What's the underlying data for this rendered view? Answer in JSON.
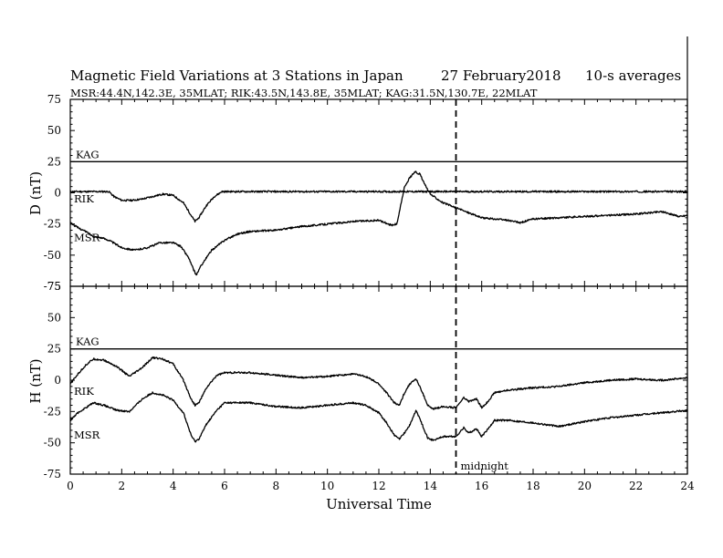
{
  "colors": {
    "foreground": "#000000",
    "background": "#ffffff"
  },
  "header": {
    "title": "Magnetic Field Variations at 3 Stations in Japan",
    "date": "27 February2018",
    "averaging": "10-s averages",
    "stations": "MSR:44.4N,142.3E, 35MLAT;  RIK:43.5N,143.8E, 35MLAT;  KAG:31.5N,130.7E, 22MLAT"
  },
  "chart_data": [
    {
      "type": "line",
      "panel": "top",
      "ylabel": "D (nT)",
      "ylim": [
        -75,
        75
      ],
      "yticks": [
        75,
        50,
        25,
        0,
        -25,
        -50,
        -75
      ],
      "xlim": [
        0,
        24
      ],
      "series": [
        {
          "name": "KAG",
          "x": [
            0,
            4,
            8,
            12,
            16,
            20,
            24
          ],
          "values": [
            25,
            25,
            25,
            25,
            25,
            25,
            25
          ]
        },
        {
          "name": "RIK",
          "x": [
            0,
            0.3,
            1.5,
            1.7,
            2.0,
            2.4,
            2.8,
            3.2,
            3.6,
            4.0,
            4.4,
            4.7,
            4.85,
            5.0,
            5.3,
            5.6,
            5.9,
            6.0,
            10,
            12.4,
            12.8,
            13.0,
            13.2,
            13.4,
            13.6,
            13.8,
            14.0,
            14.3,
            14.6,
            15.0,
            16,
            20,
            24
          ],
          "values": [
            1,
            1,
            1,
            -3,
            -6,
            -6,
            -5,
            -3,
            -1,
            -2,
            -8,
            -18,
            -23,
            -20,
            -10,
            -3,
            1,
            1,
            1,
            1,
            1,
            1,
            1,
            1,
            1,
            1,
            1,
            1,
            1,
            1,
            1,
            1,
            1
          ]
        },
        {
          "name": "MSR",
          "x": [
            0,
            0.3,
            0.6,
            0.9,
            1.2,
            1.5,
            2.0,
            2.5,
            3.0,
            3.5,
            4.0,
            4.3,
            4.6,
            4.8,
            4.9,
            5.1,
            5.5,
            6.0,
            6.5,
            7.0,
            8.0,
            9.0,
            10.0,
            11.0,
            12.0,
            12.5,
            12.7,
            12.85,
            13.0,
            13.2,
            13.4,
            13.6,
            13.8,
            14.0,
            14.5,
            15.0,
            15.5,
            16.0,
            17.0,
            17.5,
            18.0,
            19.0,
            20.0,
            21.0,
            22.0,
            23.0,
            23.7,
            24.0
          ],
          "values": [
            -24,
            -28,
            -31,
            -35,
            -36,
            -38,
            -44,
            -46,
            -44,
            -40,
            -40,
            -43,
            -52,
            -62,
            -66,
            -58,
            -46,
            -38,
            -33,
            -31,
            -30,
            -27,
            -25,
            -23,
            -22,
            -26,
            -25,
            -10,
            5,
            12,
            17,
            15,
            6,
            -1,
            -8,
            -12,
            -16,
            -20,
            -22,
            -24,
            -21,
            -20,
            -19,
            -18,
            -17,
            -15,
            -19,
            -18
          ]
        }
      ],
      "annotations": [
        {
          "text": "midnight",
          "x": 15
        }
      ]
    },
    {
      "type": "line",
      "panel": "bottom",
      "ylabel": "H (nT)",
      "xlabel": "Universal Time",
      "ylim": [
        -75,
        75
      ],
      "yticks": [
        75,
        50,
        25,
        0,
        -25,
        -50,
        -75
      ],
      "xlim": [
        0,
        24
      ],
      "xticks": [
        0,
        2,
        4,
        6,
        8,
        10,
        12,
        14,
        16,
        18,
        20,
        22,
        24
      ],
      "series": [
        {
          "name": "KAG",
          "x": [
            0,
            4,
            8,
            12,
            16,
            20,
            24
          ],
          "values": [
            25,
            25,
            25,
            25,
            25,
            25,
            25
          ]
        },
        {
          "name": "RIK",
          "x": [
            0,
            0.3,
            0.6,
            0.9,
            1.3,
            1.8,
            2.3,
            2.8,
            3.2,
            3.6,
            4.0,
            4.4,
            4.7,
            4.85,
            5.0,
            5.3,
            5.7,
            6.0,
            7.0,
            8.0,
            9.0,
            10.0,
            11.0,
            11.5,
            12.0,
            12.3,
            12.6,
            12.8,
            13.0,
            13.2,
            13.45,
            13.7,
            13.9,
            14.1,
            14.5,
            15.0,
            15.3,
            15.5,
            15.8,
            16.0,
            16.2,
            16.5,
            17.0,
            18.0,
            19.0,
            20.0,
            21.0,
            22.0,
            23.0,
            24.0
          ],
          "values": [
            -3,
            5,
            12,
            17,
            16,
            11,
            3,
            10,
            18,
            17,
            13,
            0,
            -15,
            -20,
            -18,
            -6,
            4,
            6,
            6,
            4,
            2,
            3,
            5,
            3,
            -3,
            -10,
            -18,
            -20,
            -10,
            -3,
            1,
            -10,
            -20,
            -23,
            -21,
            -22,
            -14,
            -17,
            -15,
            -22,
            -18,
            -10,
            -8,
            -6,
            -5,
            -2,
            0,
            1,
            0,
            2
          ]
        },
        {
          "name": "MSR",
          "x": [
            0,
            0.3,
            0.6,
            0.9,
            1.3,
            1.8,
            2.3,
            2.8,
            3.2,
            3.6,
            4.0,
            4.4,
            4.7,
            4.85,
            5.0,
            5.3,
            5.7,
            6.0,
            7.0,
            8.0,
            9.0,
            10.0,
            11.0,
            11.5,
            12.0,
            12.3,
            12.6,
            12.8,
            13.0,
            13.2,
            13.45,
            13.7,
            13.9,
            14.1,
            14.5,
            15.0,
            15.3,
            15.5,
            15.8,
            16.0,
            16.2,
            16.5,
            17.0,
            18.0,
            19.0,
            20.0,
            21.0,
            22.0,
            23.0,
            24.0
          ],
          "values": [
            -32,
            -26,
            -22,
            -18,
            -20,
            -24,
            -25,
            -15,
            -10,
            -12,
            -16,
            -26,
            -44,
            -49,
            -47,
            -35,
            -24,
            -18,
            -18,
            -21,
            -22,
            -20,
            -18,
            -20,
            -26,
            -34,
            -44,
            -47,
            -42,
            -36,
            -24,
            -36,
            -46,
            -48,
            -45,
            -45,
            -38,
            -42,
            -39,
            -45,
            -40,
            -32,
            -32,
            -34,
            -37,
            -33,
            -30,
            -28,
            -26,
            -24
          ]
        }
      ],
      "annotations": [
        {
          "text": "midnight",
          "x": 15
        }
      ]
    }
  ]
}
